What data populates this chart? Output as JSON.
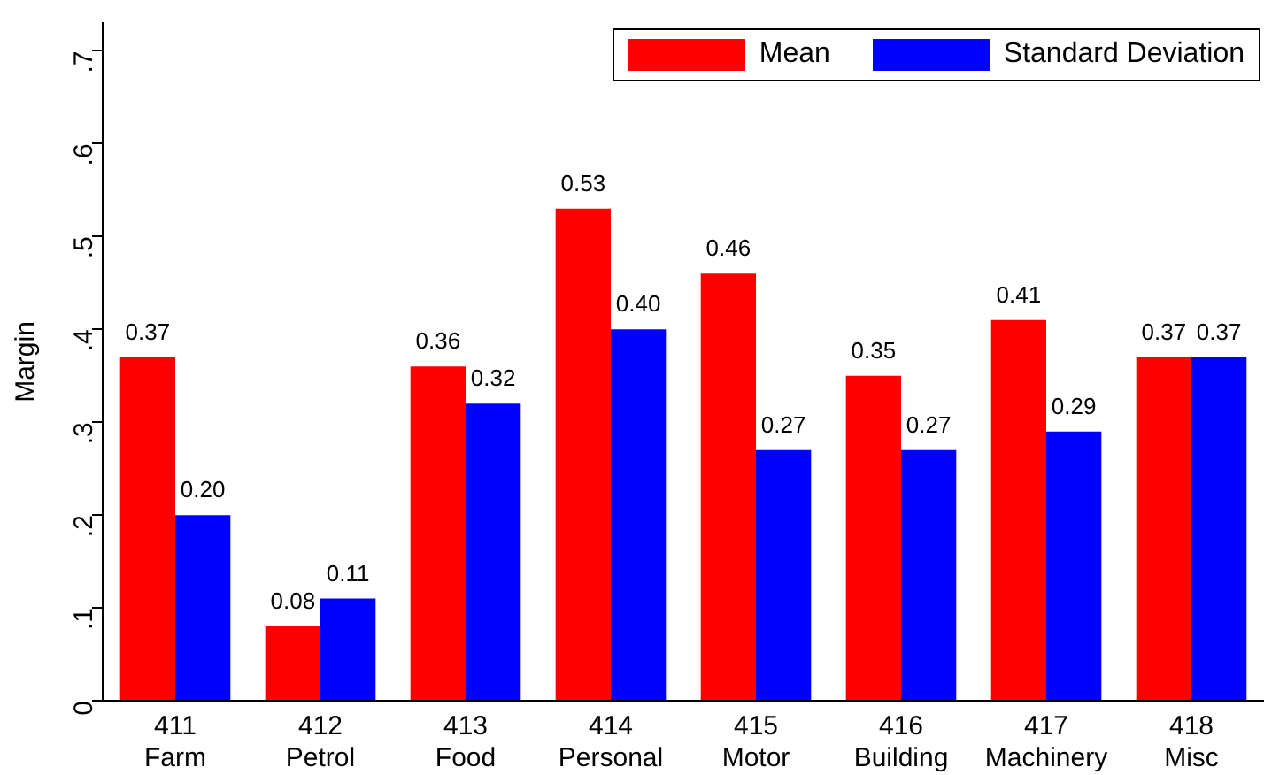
{
  "chart_data": {
    "type": "bar",
    "ylabel": "Margin",
    "categories": [
      "411 Farm",
      "412 Petrol",
      "413 Food",
      "414 Personal",
      "415 Motor",
      "416 Building",
      "417 Machinery",
      "418 Misc"
    ],
    "series": [
      {
        "name": "Mean",
        "color": "#ff0000",
        "values": [
          0.37,
          0.08,
          0.36,
          0.53,
          0.46,
          0.35,
          0.41,
          0.37
        ],
        "value_labels": [
          "0.37",
          "0.08",
          "0.36",
          "0.53",
          "0.46",
          "0.35",
          "0.41",
          "0.37"
        ]
      },
      {
        "name": "Standard Deviation",
        "color": "#0000ff",
        "values": [
          0.2,
          0.11,
          0.32,
          0.4,
          0.27,
          0.27,
          0.29,
          0.37
        ],
        "value_labels": [
          "0.20",
          "0.11",
          "0.32",
          "0.40",
          "0.27",
          "0.27",
          "0.29",
          "0.37"
        ]
      }
    ],
    "ylim": [
      0,
      0.73
    ],
    "yticks": [
      {
        "value": 0,
        "label": "0"
      },
      {
        "value": 0.1,
        "label": ".1"
      },
      {
        "value": 0.2,
        "label": ".2"
      },
      {
        "value": 0.3,
        "label": ".3"
      },
      {
        "value": 0.4,
        "label": ".4"
      },
      {
        "value": 0.5,
        "label": ".5"
      },
      {
        "value": 0.6,
        "label": ".6"
      },
      {
        "value": 0.7,
        "label": ".7"
      }
    ],
    "legend": "top right"
  }
}
